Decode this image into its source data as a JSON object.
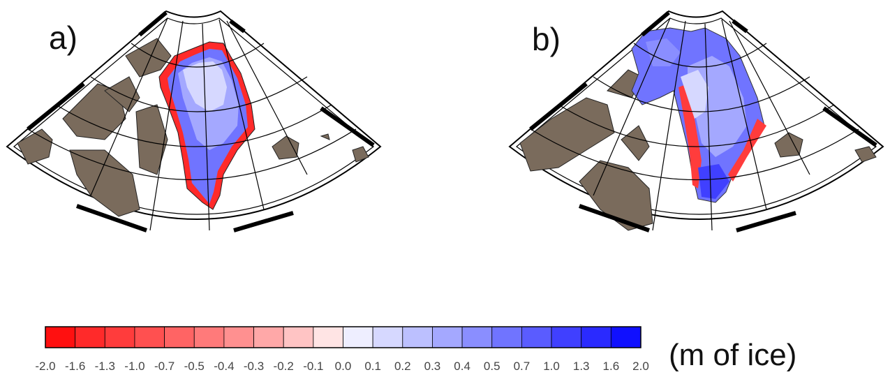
{
  "panels": [
    {
      "label": "a)"
    },
    {
      "label": "b)"
    }
  ],
  "colorbar": {
    "ticks": [
      "-2.0",
      "-1.6",
      "-1.3",
      "-1.0",
      "-0.7",
      "-0.5",
      "-0.4",
      "-0.3",
      "-0.2",
      "-0.1",
      "0.0",
      "0.1",
      "0.2",
      "0.3",
      "0.4",
      "0.5",
      "0.7",
      "1.0",
      "1.3",
      "1.6",
      "2.0"
    ],
    "colors": [
      "#ff1010",
      "#ff2a2a",
      "#ff3c3c",
      "#ff5050",
      "#ff6464",
      "#ff7a7a",
      "#ff9090",
      "#ffa8a8",
      "#ffc4c4",
      "#ffe4e4",
      "#eeeeff",
      "#d6d8ff",
      "#bcc0ff",
      "#a4a8ff",
      "#8a8eff",
      "#7074ff",
      "#5a5cff",
      "#4040ff",
      "#2a2aff",
      "#1010ff"
    ],
    "units": "(m of ice)"
  },
  "colors": {
    "land": "#7a6b5c",
    "ocean": "#ffffff",
    "frame": "#000000"
  }
}
